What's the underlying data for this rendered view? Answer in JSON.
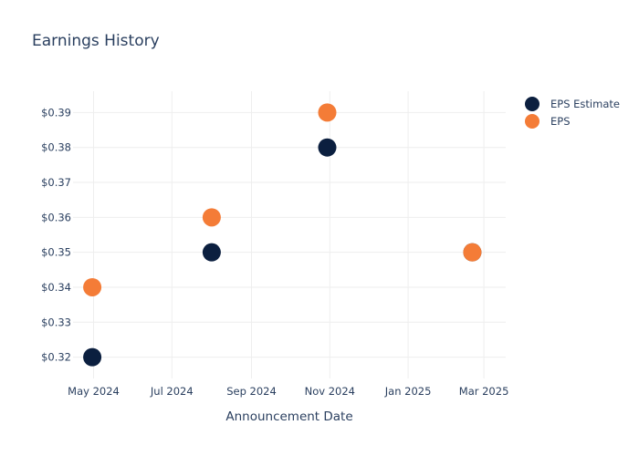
{
  "chart_data": {
    "type": "scatter",
    "title": "Earnings History",
    "xlabel": "Announcement Date",
    "ylabel": "",
    "x_tick_labels": [
      {
        "date": "2024-05-01",
        "label": "May 2024"
      },
      {
        "date": "2024-07-01",
        "label": "Jul 2024"
      },
      {
        "date": "2024-09-01",
        "label": "Sep 2024"
      },
      {
        "date": "2024-11-01",
        "label": "Nov 2024"
      },
      {
        "date": "2025-01-01",
        "label": "Jan 2025"
      },
      {
        "date": "2025-03-01",
        "label": "Mar 2025"
      }
    ],
    "xlim": [
      "2024-04-15",
      "2025-03-18"
    ],
    "y_tick_labels": [
      {
        "value": 0.32,
        "label": "$0.32"
      },
      {
        "value": 0.33,
        "label": "$0.33"
      },
      {
        "value": 0.34,
        "label": "$0.34"
      },
      {
        "value": 0.35,
        "label": "$0.35"
      },
      {
        "value": 0.36,
        "label": "$0.36"
      },
      {
        "value": 0.37,
        "label": "$0.37"
      },
      {
        "value": 0.38,
        "label": "$0.38"
      },
      {
        "value": 0.39,
        "label": "$0.39"
      }
    ],
    "ylim": [
      0.3139,
      0.3961
    ],
    "grid": true,
    "legend_position": "top-right",
    "series": [
      {
        "name": "EPS Estimate",
        "color": "#0b1f3f",
        "points": [
          {
            "x": "2024-04-30",
            "y": 0.32
          },
          {
            "x": "2024-08-01",
            "y": 0.35
          },
          {
            "x": "2024-10-30",
            "y": 0.38
          },
          {
            "x": "2025-02-20",
            "y": 0.35
          }
        ]
      },
      {
        "name": "EPS",
        "color": "#f47c37",
        "points": [
          {
            "x": "2024-04-30",
            "y": 0.34
          },
          {
            "x": "2024-08-01",
            "y": 0.36
          },
          {
            "x": "2024-10-30",
            "y": 0.39
          },
          {
            "x": "2025-02-20",
            "y": 0.35
          }
        ]
      }
    ]
  }
}
